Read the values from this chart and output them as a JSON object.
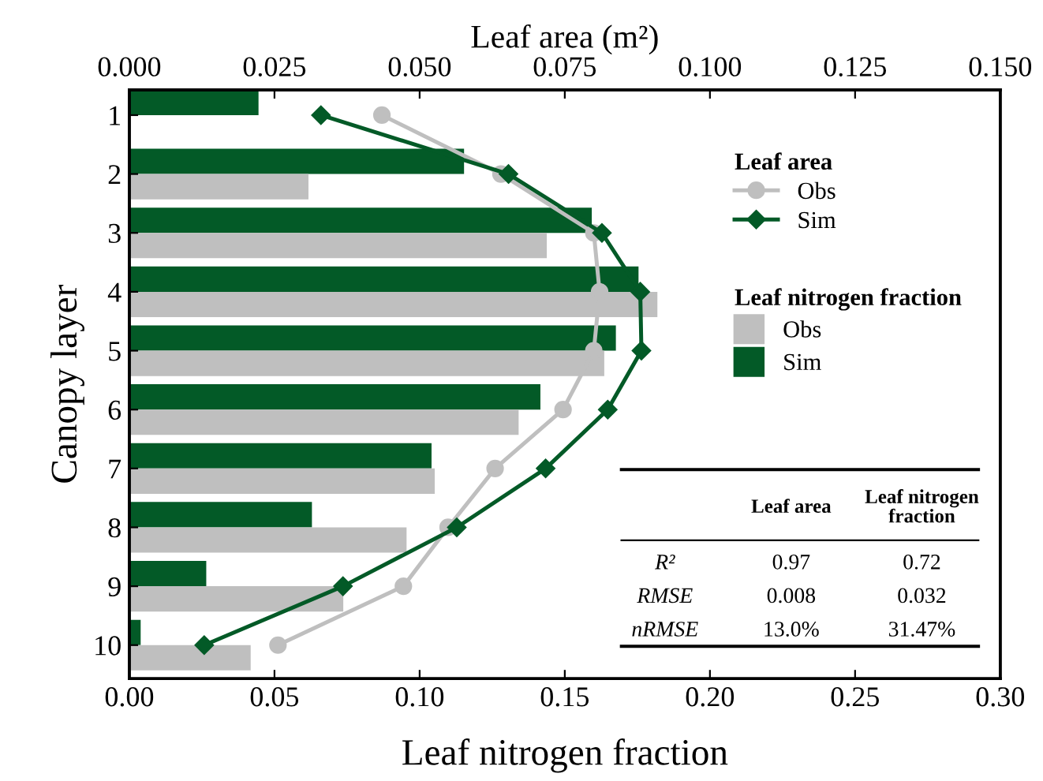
{
  "chart_data": {
    "type": "bar",
    "orientation": "horizontal",
    "xlabel": "Leaf nitrogen fraction",
    "x2label": "Leaf area (m²)",
    "ylabel": "Canopy layer",
    "categories": [
      "1",
      "2",
      "3",
      "4",
      "5",
      "6",
      "7",
      "8",
      "9",
      "10"
    ],
    "series": [
      {
        "name": "Sim",
        "color": "#035a27",
        "values": [
          0.0445,
          0.1153,
          0.1593,
          0.1754,
          0.1676,
          0.1416,
          0.1041,
          0.0629,
          0.0265,
          0.0039
        ]
      },
      {
        "name": "Obs",
        "color": "#bfbfbf",
        "values": [
          null,
          0.0617,
          0.1438,
          0.1819,
          0.1636,
          0.1341,
          0.1052,
          0.0955,
          0.0737,
          0.0418
        ]
      },
      {
        "name": "Obs",
        "type": "line",
        "axis": "x2",
        "marker": "circle",
        "color": "#bfbfbf",
        "values": [
          0.0435,
          0.064,
          0.08,
          0.081,
          0.08,
          0.0747,
          0.063,
          0.0549,
          0.0472,
          0.0256
        ]
      },
      {
        "name": "Sim",
        "type": "line",
        "axis": "x2",
        "marker": "diamond",
        "color": "#035a27",
        "values": [
          0.033,
          0.0653,
          0.0814,
          0.088,
          0.0882,
          0.0824,
          0.0717,
          0.0564,
          0.0368,
          0.0129
        ]
      }
    ],
    "legend_title": [
      "Leaf area",
      "Leaf nitrogen fraction"
    ],
    "legend": "right",
    "xlim": [
      0,
      0.3
    ],
    "xticks": [
      {
        "value": 0,
        "label": "0.00"
      },
      {
        "value": 0.05,
        "label": "0.05"
      },
      {
        "value": 0.1,
        "label": "0.10"
      },
      {
        "value": 0.15,
        "label": "0.15"
      },
      {
        "value": 0.2,
        "label": "0.20"
      },
      {
        "value": 0.25,
        "label": "0.25"
      },
      {
        "value": 0.3,
        "label": "0.30"
      }
    ],
    "x2lim": [
      0,
      0.15
    ],
    "x2ticks": [
      {
        "value": 0,
        "label": "0.000"
      },
      {
        "value": 0.025,
        "label": "0.025"
      },
      {
        "value": 0.05,
        "label": "0.050"
      },
      {
        "value": 0.075,
        "label": "0.075"
      },
      {
        "value": 0.1,
        "label": "0.100"
      },
      {
        "value": 0.125,
        "label": "0.125"
      },
      {
        "value": 0.15,
        "label": "0.150"
      }
    ],
    "grid": false,
    "annotations": [
      "Leaf area",
      "Leaf nitrogen\nfraction",
      "R²",
      "0.97",
      "0.72",
      "RMSE",
      "0.008",
      "0.032",
      "nRMSE",
      "13.0%",
      "31.47%"
    ]
  }
}
